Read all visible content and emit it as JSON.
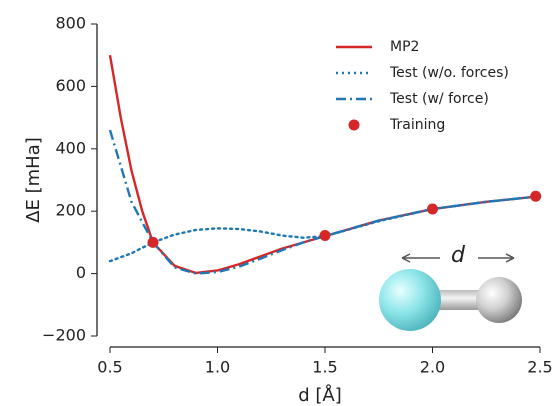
{
  "chart_data": {
    "type": "line",
    "xlabel": "d [Å]",
    "ylabel": "ΔE [mHa]",
    "annotation": "d",
    "xlim": [
      0.5,
      2.5
    ],
    "ylim": [
      -200,
      800
    ],
    "xticks": [
      0.5,
      {
        "value": 1,
        "label": "1.0"
      },
      1.5,
      {
        "value": 2,
        "label": "2.0"
      },
      2.5
    ],
    "yticks": [
      {
        "value": -200,
        "label": "−200"
      },
      0,
      200,
      400,
      600,
      800
    ],
    "legend": "upper right",
    "series": [
      {
        "name": "MP2",
        "color": "#d62728",
        "style": "solid",
        "x": [
          0.5,
          0.55,
          0.6,
          0.65,
          0.7,
          0.8,
          0.9,
          1.0,
          1.1,
          1.2,
          1.3,
          1.4,
          1.5,
          1.75,
          2.0,
          2.25,
          2.5
        ],
        "values": [
          700,
          500,
          330,
          200,
          100,
          25,
          2,
          10,
          30,
          55,
          80,
          100,
          120,
          170,
          207,
          230,
          248
        ]
      },
      {
        "name": "Test (w/o. forces)",
        "color": "#1f77b4",
        "style": "dotted",
        "x": [
          0.5,
          0.6,
          0.7,
          0.8,
          0.9,
          1.0,
          1.1,
          1.2,
          1.3,
          1.4,
          1.5,
          1.75,
          2.0,
          2.25,
          2.5
        ],
        "values": [
          40,
          65,
          100,
          125,
          140,
          145,
          143,
          135,
          122,
          115,
          120,
          168,
          207,
          230,
          248
        ]
      },
      {
        "name": "Test (w/ force)",
        "color": "#1f77b4",
        "style": "dashdot",
        "x": [
          0.5,
          0.6,
          0.7,
          0.8,
          0.9,
          1.0,
          1.1,
          1.2,
          1.3,
          1.4,
          1.5,
          1.75,
          2.0,
          2.25,
          2.5
        ],
        "values": [
          460,
          230,
          100,
          20,
          0,
          5,
          22,
          48,
          75,
          100,
          120,
          170,
          207,
          230,
          248
        ]
      },
      {
        "name": "Training",
        "color": "#d62728",
        "style": "markers",
        "x": [
          0.7,
          1.5,
          2.0,
          2.48
        ],
        "values": [
          100,
          122,
          207,
          248
        ]
      }
    ]
  }
}
